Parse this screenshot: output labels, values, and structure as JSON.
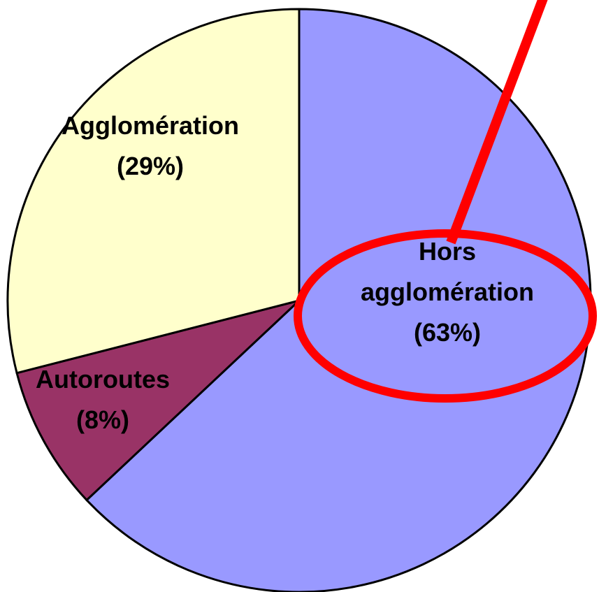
{
  "chart_data": {
    "type": "pie",
    "categories": [
      "Hors agglomération",
      "Autoroutes",
      "Agglomération"
    ],
    "values": [
      63,
      8,
      29
    ],
    "value_labels": [
      "(63%)",
      "(8%)",
      "(29%)"
    ],
    "colors": [
      "#9999ff",
      "#993366",
      "#ffffcc"
    ]
  }
}
